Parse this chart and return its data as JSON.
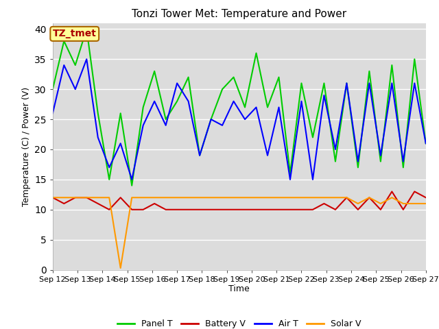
{
  "title": "Tonzi Tower Met: Temperature and Power",
  "ylabel": "Temperature (C) / Power (V)",
  "xlabel": "Time",
  "ylim": [
    0,
    41
  ],
  "yticks": [
    0,
    5,
    10,
    15,
    20,
    25,
    30,
    35,
    40
  ],
  "bg_color": "#dcdcdc",
  "annotation_text": "TZ_tmet",
  "x_labels": [
    "Sep 12",
    "Sep 13",
    "Sep 14",
    "Sep 15",
    "Sep 16",
    "Sep 17",
    "Sep 18",
    "Sep 19",
    "Sep 20",
    "Sep 21",
    "Sep 22",
    "Sep 23",
    "Sep 24",
    "Sep 25",
    "Sep 26",
    "Sep 27"
  ],
  "panel_t": [
    30,
    38,
    34,
    40,
    26,
    15,
    26,
    14,
    27,
    33,
    25,
    28,
    32,
    19,
    25,
    30,
    32,
    27,
    36,
    27,
    32,
    16,
    31,
    22,
    31,
    18,
    31,
    17,
    33,
    18,
    34,
    17,
    35,
    21
  ],
  "air_t": [
    26,
    34,
    30,
    35,
    22,
    17,
    21,
    15,
    24,
    28,
    24,
    31,
    28,
    19,
    25,
    24,
    28,
    25,
    27,
    19,
    27,
    15,
    28,
    15,
    29,
    20,
    31,
    18,
    31,
    19,
    31,
    18,
    31,
    21
  ],
  "battery_v": [
    12,
    11,
    12,
    12,
    11,
    10,
    12,
    10,
    10,
    11,
    10,
    10,
    10,
    10,
    10,
    10,
    10,
    10,
    10,
    10,
    10,
    10,
    10,
    10,
    11,
    10,
    12,
    10,
    12,
    10,
    13,
    10,
    13,
    12
  ],
  "solar_v": [
    12,
    12,
    12,
    12,
    12,
    12,
    0.3,
    12,
    12,
    12,
    12,
    12,
    12,
    12,
    12,
    12,
    12,
    12,
    12,
    12,
    12,
    12,
    12,
    12,
    12,
    12,
    12,
    11,
    12,
    11,
    12,
    11,
    11,
    11
  ],
  "panel_t_color": "#00cc00",
  "air_t_color": "#0000ff",
  "battery_v_color": "#cc0000",
  "solar_v_color": "#ff9900",
  "line_width": 1.5,
  "title_fontsize": 11,
  "axis_fontsize": 9,
  "tick_fontsize": 8,
  "legend_fontsize": 9,
  "annot_fontsize": 10,
  "annot_color": "#aa0000",
  "annot_bg": "#ffff99",
  "annot_edge": "#aa6600"
}
